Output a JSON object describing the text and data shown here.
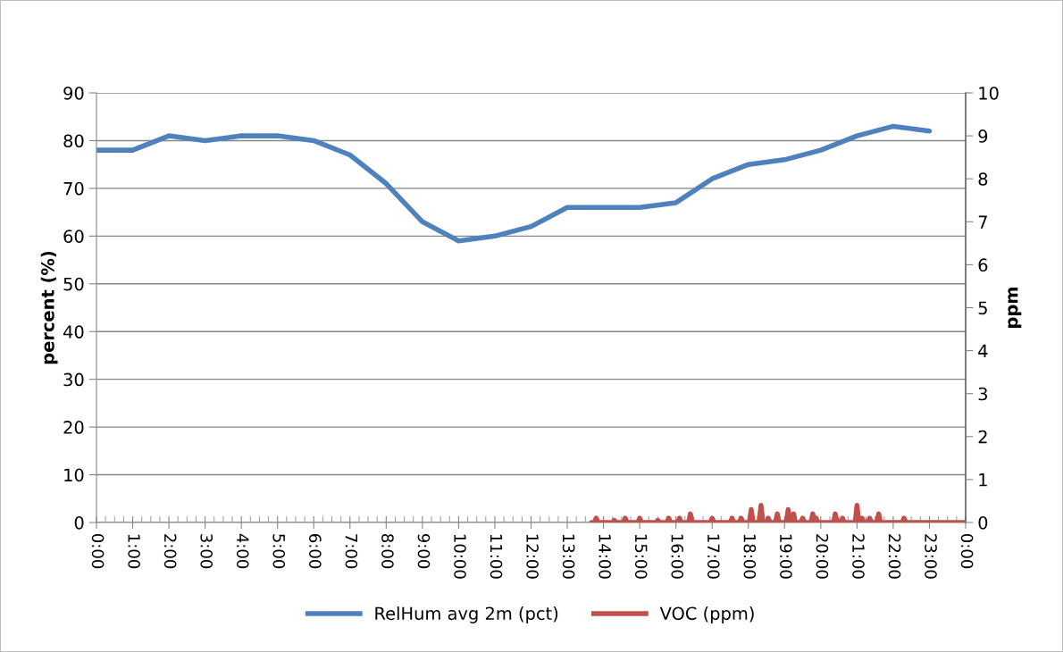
{
  "chart_data": {
    "type": "line",
    "ylabel": "percent (%)",
    "y2label": "ppm",
    "grid": "y",
    "legend": "bottom",
    "marker": "none",
    "line_style": "solid",
    "xlim": [
      0,
      24
    ],
    "xticks": [
      {
        "value": 0,
        "label": "0:00"
      },
      {
        "value": 1,
        "label": "1:00"
      },
      {
        "value": 2,
        "label": "2:00"
      },
      {
        "value": 3,
        "label": "3:00"
      },
      {
        "value": 4,
        "label": "4:00"
      },
      {
        "value": 5,
        "label": "5:00"
      },
      {
        "value": 6,
        "label": "6:00"
      },
      {
        "value": 7,
        "label": "7:00"
      },
      {
        "value": 8,
        "label": "8:00"
      },
      {
        "value": 9,
        "label": "9:00"
      },
      {
        "value": 10,
        "label": "10:00"
      },
      {
        "value": 11,
        "label": "11:00"
      },
      {
        "value": 12,
        "label": "12:00"
      },
      {
        "value": 13,
        "label": "13:00"
      },
      {
        "value": 14,
        "label": "14:00"
      },
      {
        "value": 15,
        "label": "15:00"
      },
      {
        "value": 16,
        "label": "16:00"
      },
      {
        "value": 17,
        "label": "17:00"
      },
      {
        "value": 18,
        "label": "18:00"
      },
      {
        "value": 19,
        "label": "19:00"
      },
      {
        "value": 20,
        "label": "20:00"
      },
      {
        "value": 21,
        "label": "21:00"
      },
      {
        "value": 22,
        "label": "22:00"
      },
      {
        "value": 23,
        "label": "23:00"
      },
      {
        "value": 24,
        "label": "0:00"
      }
    ],
    "ylim": [
      0,
      90
    ],
    "yticks": [
      0,
      10,
      20,
      30,
      40,
      50,
      60,
      70,
      80,
      90
    ],
    "y2lim": [
      0,
      10
    ],
    "y2ticks": [
      0,
      1,
      2,
      3,
      4,
      5,
      6,
      7,
      8,
      9,
      10
    ],
    "series": [
      {
        "name": "RelHum avg 2m (pct)",
        "color": "#4f81bd",
        "x": [
          0,
          1,
          2,
          3,
          4,
          5,
          6,
          7,
          8,
          9,
          10,
          11,
          12,
          13,
          14,
          15,
          16,
          17,
          18,
          19,
          20,
          21,
          22,
          23
        ],
        "values": [
          78,
          78,
          81,
          80,
          81,
          81,
          80,
          77,
          71,
          63,
          59,
          60,
          62,
          66,
          66,
          66,
          67,
          72,
          75,
          76,
          78,
          81,
          83,
          82
        ]
      },
      {
        "name": "VOC (ppm)",
        "color": "#c0504d",
        "axis": "y2",
        "x": [
          13.67,
          13.75,
          13.8,
          13.85,
          14.25,
          14.3,
          14.35,
          14.55,
          14.6,
          14.65,
          14.95,
          15.0,
          15.05,
          15.45,
          15.5,
          15.55,
          15.75,
          15.8,
          15.85,
          16.05,
          16.1,
          16.15,
          16.35,
          16.4,
          16.45,
          16.95,
          17.0,
          17.05,
          17.5,
          17.55,
          17.6,
          17.75,
          17.8,
          17.85,
          18.03,
          18.08,
          18.13,
          18.3,
          18.35,
          18.4,
          18.5,
          18.55,
          18.6,
          18.75,
          18.8,
          18.85,
          19.05,
          19.1,
          19.15,
          19.2,
          19.25,
          19.3,
          19.45,
          19.5,
          19.55,
          19.73,
          19.78,
          19.83,
          19.87,
          19.92,
          20.35,
          20.4,
          20.45,
          20.55,
          20.6,
          20.65,
          20.95,
          21.0,
          21.05,
          21.09,
          21.14,
          21.19,
          21.3,
          21.35,
          21.4,
          21.55,
          21.6,
          21.65,
          22.25,
          22.3,
          22.35,
          24.0
        ],
        "values": [
          0,
          0,
          0.1,
          0,
          0,
          0.05,
          0,
          0,
          0.1,
          0,
          0,
          0.1,
          0,
          0,
          0.05,
          0,
          0,
          0.1,
          0,
          0,
          0.1,
          0,
          0,
          0.2,
          0,
          0,
          0.1,
          0,
          0,
          0.1,
          0,
          0,
          0.1,
          0,
          0,
          0.3,
          0,
          0,
          0.4,
          0,
          0,
          0.1,
          0,
          0,
          0.2,
          0,
          0,
          0.3,
          0,
          0,
          0.2,
          0,
          0,
          0.1,
          0,
          0,
          0.2,
          0,
          0.1,
          0,
          0,
          0.2,
          0,
          0,
          0.1,
          0,
          0,
          0.4,
          0,
          0,
          0.1,
          0,
          0,
          0.1,
          0,
          0,
          0.2,
          0,
          0,
          0.1,
          0,
          0
        ]
      }
    ]
  }
}
